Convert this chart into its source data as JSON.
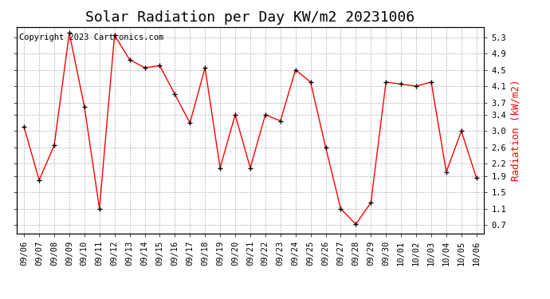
{
  "title": "Solar Radiation per Day KW/m2 20231006",
  "copyright": "Copyright 2023 Cartronics.com",
  "ylabel": "Radiation (kW/m2)",
  "ylabel_color": "red",
  "line_color": "red",
  "marker_color": "black",
  "background_color": "#ffffff",
  "grid_color": "#aaaaaa",
  "dates": [
    "09/06",
    "09/07",
    "09/08",
    "09/09",
    "09/10",
    "09/11",
    "09/12",
    "09/13",
    "09/14",
    "09/15",
    "09/16",
    "09/17",
    "09/18",
    "09/19",
    "09/20",
    "09/21",
    "09/22",
    "09/23",
    "09/24",
    "09/25",
    "09/26",
    "09/27",
    "09/28",
    "09/29",
    "09/30",
    "10/01",
    "10/02",
    "10/03",
    "10/04",
    "10/05",
    "10/06"
  ],
  "values": [
    3.1,
    1.8,
    2.65,
    5.4,
    3.6,
    1.1,
    5.35,
    4.75,
    4.55,
    4.6,
    3.9,
    3.2,
    4.55,
    2.1,
    3.4,
    2.1,
    3.4,
    3.25,
    4.5,
    4.2,
    2.6,
    1.1,
    0.72,
    1.25,
    4.2,
    4.15,
    4.1,
    4.2,
    2.0,
    3.0,
    1.85
  ],
  "ylim": [
    0.5,
    5.55
  ],
  "yticks": [
    0.7,
    1.1,
    1.5,
    1.9,
    2.2,
    2.6,
    3.0,
    3.4,
    3.7,
    4.1,
    4.5,
    4.9,
    5.3
  ],
  "title_fontsize": 13,
  "copyright_fontsize": 7.5,
  "ylabel_fontsize": 9,
  "tick_fontsize": 7.5
}
